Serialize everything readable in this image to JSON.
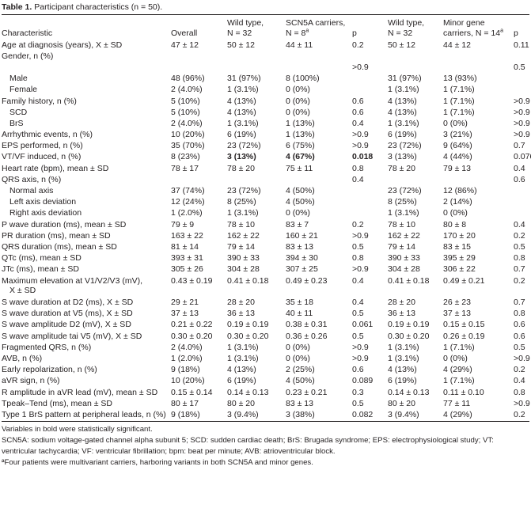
{
  "caption": {
    "label": "Table 1.",
    "text": "Participant characteristics (n = 50)."
  },
  "headers": [
    "Characteristic",
    "Overall",
    "Wild type, N = 32",
    "SCN5A carriers, N = 8ª",
    "p",
    "Wild type, N = 32",
    "Minor gene carriers, N = 14ª",
    "p"
  ],
  "header_lines": {
    "wt_l1": "Wild type,",
    "wt_l2": "N = 32",
    "scn_l1": "SCN5A carriers,",
    "scn_l2": "N = 8",
    "minor_l1": "Minor gene",
    "minor_l2": "carriers, N = 14",
    "sup": "a"
  },
  "rows": [
    {
      "c": "Age at diagnosis (years), X ± SD",
      "v": [
        "47 ± 12",
        "50 ± 12",
        "44 ± 11",
        "0.2",
        "50 ± 12",
        "44 ± 12",
        "0.11"
      ]
    },
    {
      "c": "Gender, n (%)",
      "v": [
        "",
        "",
        "",
        "",
        "",
        "",
        ""
      ]
    },
    {
      "c": "",
      "v": [
        "",
        "",
        "",
        ">0.9",
        "",
        "",
        "0.5"
      ]
    },
    {
      "c": "Male",
      "i": true,
      "v": [
        "48 (96%)",
        "31 (97%)",
        "8 (100%)",
        "",
        "31 (97%)",
        "13 (93%)",
        ""
      ]
    },
    {
      "c": "Female",
      "i": true,
      "v": [
        "2 (4.0%)",
        "1 (3.1%)",
        "0 (0%)",
        "",
        "1 (3.1%)",
        "1 (7.1%)",
        ""
      ]
    },
    {
      "c": "Family history, n (%)",
      "v": [
        "5 (10%)",
        "4 (13%)",
        "0 (0%)",
        "0.6",
        "4 (13%)",
        "1 (7.1%)",
        ">0.9"
      ]
    },
    {
      "c": "SCD",
      "i": true,
      "v": [
        "5 (10%)",
        "4 (13%)",
        "0 (0%)",
        "0.6",
        "4 (13%)",
        "1 (7.1%)",
        ">0.9"
      ]
    },
    {
      "c": "BrS",
      "i": true,
      "v": [
        "2 (4.0%)",
        "1 (3.1%)",
        "1 (13%)",
        "0.4",
        "1 (3.1%)",
        "0 (0%)",
        ">0.9"
      ]
    },
    {
      "c": "Arrhythmic events, n (%)",
      "v": [
        "10 (20%)",
        "6 (19%)",
        "1 (13%)",
        ">0.9",
        "6 (19%)",
        "3 (21%)",
        ">0.9"
      ]
    },
    {
      "c": "EPS performed, n (%)",
      "v": [
        "35 (70%)",
        "23 (72%)",
        "6 (75%)",
        ">0.9",
        "23 (72%)",
        "9 (64%)",
        "0.7"
      ]
    },
    {
      "c": "VT/VF induced, n (%)",
      "v": [
        "8 (23%)",
        "3 (13%)",
        "4 (67%)",
        "0.018",
        "3 (13%)",
        "4 (44%)",
        "0.076"
      ],
      "bold": [
        1,
        2,
        3
      ]
    },
    {
      "c": "Heart rate (bpm), mean ± SD",
      "v": [
        "78 ± 17",
        "78 ± 20",
        "75 ± 11",
        "0.8",
        "78 ± 20",
        "79 ± 13",
        "0.4"
      ]
    },
    {
      "c": "QRS axis, n (%)",
      "v": [
        "",
        "",
        "",
        "0.4",
        "",
        "",
        "0.6"
      ]
    },
    {
      "c": "Normal axis",
      "i": true,
      "v": [
        "37 (74%)",
        "23 (72%)",
        "4 (50%)",
        "",
        "23 (72%)",
        "12 (86%)",
        ""
      ]
    },
    {
      "c": "Left axis deviation",
      "i": true,
      "v": [
        "12 (24%)",
        "8 (25%)",
        "4 (50%)",
        "",
        "8 (25%)",
        "2 (14%)",
        ""
      ]
    },
    {
      "c": "Right axis deviation",
      "i": true,
      "v": [
        "1 (2.0%)",
        "1 (3.1%)",
        "0 (0%)",
        "",
        "1 (3.1%)",
        "0 (0%)",
        ""
      ]
    },
    {
      "c": "P wave duration (ms), mean ± SD",
      "v": [
        "79 ± 9",
        "78 ± 10",
        "83 ± 7",
        "0.2",
        "78 ± 10",
        "80 ± 8",
        "0.4"
      ]
    },
    {
      "c": "PR duration (ms), mean ± SD",
      "v": [
        "163 ± 22",
        "162 ± 22",
        "160 ± 21",
        ">0.9",
        "162 ± 22",
        "170 ± 20",
        "0.2"
      ]
    },
    {
      "c": "QRS duration (ms), mean ± SD",
      "v": [
        "81 ± 14",
        "79 ± 14",
        "83 ± 13",
        "0.5",
        "79 ± 14",
        "83 ± 15",
        "0.5"
      ]
    },
    {
      "c": "QTc (ms), mean ± SD",
      "v": [
        "393 ± 31",
        "390 ± 33",
        "394 ± 30",
        "0.8",
        "390 ± 33",
        "395 ± 29",
        "0.8"
      ]
    },
    {
      "c": "JTc (ms), mean ± SD",
      "v": [
        "305 ± 26",
        "304 ± 28",
        "307 ± 25",
        ">0.9",
        "304 ± 28",
        "306 ± 22",
        "0.7"
      ]
    },
    {
      "c": "Maximum elevation at V1/V2/V3 (mV),",
      "c2": "X ± SD",
      "tall": true,
      "v": [
        "0.43 ± 0.19",
        "0.41 ± 0.18",
        "0.49 ± 0.23",
        "0.4",
        "0.41 ± 0.18",
        "0.49 ± 0.21",
        "0.2"
      ]
    },
    {
      "c": "S wave duration at D2 (ms), X ± SD",
      "v": [
        "29 ± 21",
        "28 ± 20",
        "35 ± 18",
        "0.4",
        "28 ± 20",
        "26 ± 23",
        "0.7"
      ]
    },
    {
      "c": "S wave duration at V5 (ms), X ± SD",
      "v": [
        "37 ± 13",
        "36 ± 13",
        "40 ± 11",
        "0.5",
        "36 ± 13",
        "37 ± 13",
        "0.8"
      ]
    },
    {
      "c": "S wave amplitude D2 (mV), X ± SD",
      "v": [
        "0.21 ± 0.22",
        "0.19 ± 0.19",
        "0.38 ± 0.31",
        "0.061",
        "0.19 ± 0.19",
        "0.15 ± 0.15",
        "0.6"
      ]
    },
    {
      "c": "S wave amplitude tai V5 (mV), X ± SD",
      "v": [
        "0.30 ± 0.20",
        "0.30 ± 0.20",
        "0.36 ± 0.26",
        "0.5",
        "0.30 ± 0.20",
        "0.26 ± 0.19",
        "0.6"
      ]
    },
    {
      "c": "Fragmented QRS, n (%)",
      "v": [
        "2 (4.0%)",
        "1 (3.1%)",
        "0 (0%)",
        ">0.9",
        "1 (3.1%)",
        "1 (7.1%)",
        "0.5"
      ]
    },
    {
      "c": "AVB, n (%)",
      "v": [
        "1 (2.0%)",
        "1 (3.1%)",
        "0 (0%)",
        ">0.9",
        "1 (3.1%)",
        "0 (0%)",
        ">0.9"
      ]
    },
    {
      "c": "Early repolarization, n (%)",
      "v": [
        "9 (18%)",
        "4 (13%)",
        "2 (25%)",
        "0.6",
        "4 (13%)",
        "4 (29%)",
        "0.2"
      ]
    },
    {
      "c": "aVR sign, n (%)",
      "v": [
        "10 (20%)",
        "6 (19%)",
        "4 (50%)",
        "0.089",
        "6 (19%)",
        "1 (7.1%)",
        "0.4"
      ]
    },
    {
      "c": "R amplitude in aVR lead (mV), mean ± SD",
      "v": [
        "0.15 ± 0.14",
        "0.14 ± 0.13",
        "0.23 ± 0.21",
        "0.3",
        "0.14 ± 0.13",
        "0.11 ± 0.10",
        "0.8"
      ]
    },
    {
      "c": "Tpeak–Tend (ms), mean ± SD",
      "v": [
        "80 ± 17",
        "80 ± 20",
        "83 ± 13",
        "0.5",
        "80 ± 20",
        "77 ± 11",
        ">0.9"
      ]
    },
    {
      "c": "Type 1 BrS pattern at peripheral leads, n (%)",
      "v": [
        "9 (18%)",
        "3 (9.4%)",
        "3 (38%)",
        "0.082",
        "3 (9.4%)",
        "4 (29%)",
        "0.2"
      ]
    }
  ],
  "footnotes": [
    "Variables in bold were statistically significant.",
    "SCN5A: sodium voltage-gated channel alpha subunit 5; SCD: sudden cardiac death; BrS: Brugada syndrome; EPS: electrophysiological study; VT: ventricular tachycardia; VF: ventricular fibrillation; bpm: beat per minute; AVB: atrioventricular block.",
    "ªFour patients were multivariant carriers, harboring variants in both SCN5A and minor genes."
  ]
}
